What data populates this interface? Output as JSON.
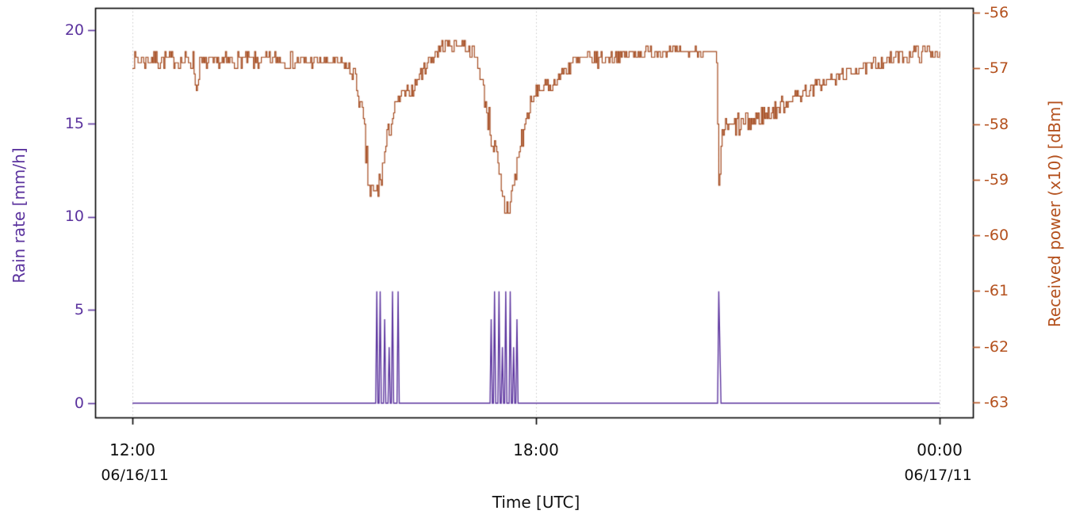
{
  "figure": {
    "background": "#ffffff"
  },
  "chart_data": {
    "type": "line",
    "title": "",
    "xlabel": "Time  [UTC]",
    "x_axis": {
      "range_hours": [
        12,
        24
      ],
      "gridlines": true,
      "gridline_color": "#c8c8c8",
      "tick_color": "#000000",
      "box_color": "#000000",
      "ticks": [
        {
          "hour": 12,
          "label": "12:00",
          "date": "06/16/11"
        },
        {
          "hour": 18,
          "label": "18:00",
          "date": ""
        },
        {
          "hour": 24,
          "label": "00:00",
          "date": "06/17/11"
        }
      ]
    },
    "left_axis": {
      "label": "Rain rate [mm/h]",
      "color": "#5b339e",
      "range": [
        -0.7,
        21.2
      ],
      "ticks": [
        20,
        15,
        10,
        5,
        0
      ],
      "tick_labels": [
        "20",
        "15",
        "10",
        "5",
        "0"
      ]
    },
    "right_axis": {
      "label": "Received power (x10) [dBm]",
      "color": "#b4511e",
      "range": [
        -63.3,
        -55.9
      ],
      "ticks": [
        -56,
        -57,
        -58,
        -59,
        -60,
        -61,
        -62,
        -63
      ],
      "tick_labels": [
        "-56",
        "-57",
        "-58",
        "-59",
        "-60",
        "-61",
        "-62",
        "-63"
      ]
    },
    "series": [
      {
        "name": "received_power",
        "axis": "right",
        "color": "#a3481c",
        "unit": "dBm",
        "quantize_step": 0.1,
        "noise_seed": 7,
        "keypoints_time_value_noise": [
          [
            12.0,
            -56.85,
            0.15
          ],
          [
            12.9,
            -56.85,
            0.15
          ],
          [
            12.95,
            -57.45,
            0.0
          ],
          [
            13.0,
            -56.9,
            0.15
          ],
          [
            14.2,
            -56.85,
            0.15
          ],
          [
            15.1,
            -56.9,
            0.12
          ],
          [
            15.3,
            -57.1,
            0.12
          ],
          [
            15.42,
            -57.9,
            0.25
          ],
          [
            15.52,
            -59.2,
            0.35
          ],
          [
            15.6,
            -59.35,
            0.3
          ],
          [
            15.7,
            -58.9,
            0.3
          ],
          [
            15.8,
            -58.2,
            0.2
          ],
          [
            15.9,
            -57.7,
            0.15
          ],
          [
            16.0,
            -57.5,
            0.12
          ],
          [
            16.15,
            -57.4,
            0.12
          ],
          [
            16.3,
            -57.05,
            0.12
          ],
          [
            16.45,
            -56.8,
            0.12
          ],
          [
            16.6,
            -56.6,
            0.1
          ],
          [
            16.9,
            -56.55,
            0.1
          ],
          [
            17.05,
            -56.7,
            0.12
          ],
          [
            17.15,
            -57.0,
            0.15
          ],
          [
            17.25,
            -57.6,
            0.25
          ],
          [
            17.38,
            -58.5,
            0.35
          ],
          [
            17.5,
            -59.4,
            0.35
          ],
          [
            17.58,
            -59.55,
            0.3
          ],
          [
            17.68,
            -59.0,
            0.3
          ],
          [
            17.78,
            -58.3,
            0.25
          ],
          [
            17.88,
            -57.8,
            0.18
          ],
          [
            18.0,
            -57.4,
            0.12
          ],
          [
            18.25,
            -57.3,
            0.1
          ],
          [
            18.4,
            -57.05,
            0.12
          ],
          [
            18.55,
            -56.9,
            0.15
          ],
          [
            18.8,
            -56.85,
            0.15
          ],
          [
            19.1,
            -56.8,
            0.12
          ],
          [
            19.5,
            -56.72,
            0.1
          ],
          [
            20.0,
            -56.7,
            0.08
          ],
          [
            20.5,
            -56.7,
            0.06
          ],
          [
            20.68,
            -56.72,
            0.05
          ],
          [
            20.72,
            -59.3,
            0.0
          ],
          [
            20.76,
            -58.1,
            0.15
          ],
          [
            20.95,
            -58.05,
            0.22
          ],
          [
            21.2,
            -57.95,
            0.22
          ],
          [
            21.45,
            -57.8,
            0.18
          ],
          [
            21.7,
            -57.6,
            0.15
          ],
          [
            21.95,
            -57.45,
            0.12
          ],
          [
            22.2,
            -57.3,
            0.12
          ],
          [
            22.5,
            -57.15,
            0.12
          ],
          [
            22.8,
            -57.0,
            0.12
          ],
          [
            23.1,
            -56.9,
            0.12
          ],
          [
            23.4,
            -56.8,
            0.12
          ],
          [
            23.65,
            -56.72,
            0.15
          ],
          [
            23.85,
            -56.7,
            0.15
          ],
          [
            24.0,
            -56.75,
            0.08
          ]
        ]
      },
      {
        "name": "rain_rate",
        "axis": "left",
        "color": "#5b339e",
        "unit": "mm/h",
        "baseline_value": 0,
        "spikes_time_value": [
          [
            15.63,
            6
          ],
          [
            15.69,
            6
          ],
          [
            15.75,
            4.5
          ],
          [
            15.81,
            3
          ],
          [
            15.87,
            6
          ],
          [
            15.95,
            6
          ],
          [
            17.33,
            4.5
          ],
          [
            17.39,
            6
          ],
          [
            17.45,
            6
          ],
          [
            17.5,
            3
          ],
          [
            17.55,
            6
          ],
          [
            17.61,
            6
          ],
          [
            17.67,
            3
          ],
          [
            17.72,
            4.5
          ],
          [
            20.71,
            6
          ],
          [
            20.74,
            3
          ]
        ]
      }
    ]
  }
}
